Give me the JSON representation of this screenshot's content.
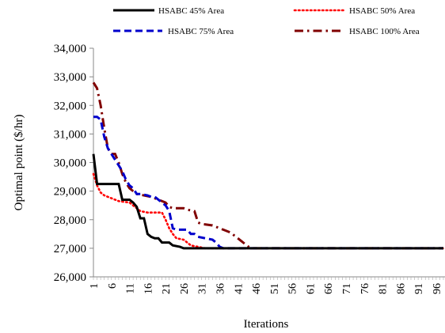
{
  "chart_data": {
    "type": "line",
    "title": "",
    "xlabel": "Iterations",
    "ylabel": "Optimal point ($/hr)",
    "xlim": [
      1,
      98
    ],
    "ylim": [
      26000,
      34000
    ],
    "y_ticks": [
      26000,
      27000,
      28000,
      29000,
      30000,
      31000,
      32000,
      33000,
      34000
    ],
    "y_tick_labels": [
      "26,000",
      "27,000",
      "28,000",
      "29,000",
      "30,000",
      "31,000",
      "32,000",
      "33,000",
      "34,000"
    ],
    "x_ticks": [
      1,
      6,
      11,
      16,
      21,
      26,
      31,
      36,
      41,
      46,
      51,
      56,
      61,
      66,
      71,
      76,
      81,
      86,
      91,
      96
    ],
    "x_tick_labels": [
      "1",
      "6",
      "11",
      "16",
      "21",
      "26",
      "31",
      "36",
      "41",
      "46",
      "51",
      "56",
      "61",
      "66",
      "71",
      "76",
      "81",
      "86",
      "91",
      "96"
    ],
    "grid": false,
    "legend_position": "top",
    "series": [
      {
        "name": "HSABC 45% Area",
        "color": "#000000",
        "style": "solid",
        "points": [
          [
            1,
            30300
          ],
          [
            2,
            29250
          ],
          [
            8,
            29250
          ],
          [
            9,
            28700
          ],
          [
            11,
            28700
          ],
          [
            12,
            28600
          ],
          [
            13,
            28450
          ],
          [
            14,
            28050
          ],
          [
            15,
            28050
          ],
          [
            16,
            27500
          ],
          [
            17,
            27400
          ],
          [
            18,
            27350
          ],
          [
            19,
            27350
          ],
          [
            20,
            27200
          ],
          [
            22,
            27200
          ],
          [
            23,
            27100
          ],
          [
            25,
            27050
          ],
          [
            26,
            27000
          ],
          [
            98,
            27000
          ]
        ]
      },
      {
        "name": "HSABC 50% Area",
        "color": "#ff0000",
        "style": "dotted",
        "points": [
          [
            1,
            29600
          ],
          [
            2,
            29200
          ],
          [
            3,
            28950
          ],
          [
            4,
            28850
          ],
          [
            6,
            28750
          ],
          [
            8,
            28650
          ],
          [
            11,
            28600
          ],
          [
            12,
            28500
          ],
          [
            14,
            28300
          ],
          [
            16,
            28250
          ],
          [
            20,
            28250
          ],
          [
            21,
            28000
          ],
          [
            22,
            27700
          ],
          [
            23,
            27500
          ],
          [
            24,
            27350
          ],
          [
            26,
            27300
          ],
          [
            27,
            27200
          ],
          [
            28,
            27100
          ],
          [
            30,
            27050
          ],
          [
            32,
            27000
          ],
          [
            98,
            27000
          ]
        ]
      },
      {
        "name": "HSABC 75% Area",
        "color": "#0000cc",
        "style": "dashed",
        "points": [
          [
            1,
            31600
          ],
          [
            2,
            31600
          ],
          [
            3,
            31500
          ],
          [
            4,
            30900
          ],
          [
            5,
            30500
          ],
          [
            6,
            30300
          ],
          [
            7,
            30100
          ],
          [
            8,
            29900
          ],
          [
            9,
            29700
          ],
          [
            10,
            29400
          ],
          [
            11,
            29200
          ],
          [
            12,
            29100
          ],
          [
            13,
            28900
          ],
          [
            14,
            28900
          ],
          [
            16,
            28850
          ],
          [
            17,
            28800
          ],
          [
            18,
            28800
          ],
          [
            19,
            28700
          ],
          [
            20,
            28600
          ],
          [
            21,
            28500
          ],
          [
            22,
            28300
          ],
          [
            23,
            27700
          ],
          [
            24,
            27650
          ],
          [
            27,
            27650
          ],
          [
            28,
            27500
          ],
          [
            29,
            27500
          ],
          [
            30,
            27400
          ],
          [
            32,
            27350
          ],
          [
            34,
            27300
          ],
          [
            35,
            27200
          ],
          [
            36,
            27050
          ],
          [
            37,
            27000
          ],
          [
            98,
            27000
          ]
        ]
      },
      {
        "name": "HSABC 100% Area",
        "color": "#800000",
        "style": "dashdot",
        "points": [
          [
            1,
            32800
          ],
          [
            2,
            32600
          ],
          [
            3,
            32000
          ],
          [
            4,
            31200
          ],
          [
            5,
            30500
          ],
          [
            6,
            30300
          ],
          [
            7,
            30300
          ],
          [
            8,
            30000
          ],
          [
            9,
            29600
          ],
          [
            10,
            29300
          ],
          [
            11,
            29100
          ],
          [
            12,
            29000
          ],
          [
            13,
            28900
          ],
          [
            15,
            28850
          ],
          [
            17,
            28800
          ],
          [
            18,
            28750
          ],
          [
            19,
            28700
          ],
          [
            20,
            28650
          ],
          [
            21,
            28600
          ],
          [
            22,
            28450
          ],
          [
            23,
            28400
          ],
          [
            26,
            28400
          ],
          [
            27,
            28350
          ],
          [
            29,
            28300
          ],
          [
            30,
            27900
          ],
          [
            31,
            27850
          ],
          [
            34,
            27800
          ],
          [
            37,
            27650
          ],
          [
            39,
            27550
          ],
          [
            40,
            27450
          ],
          [
            41,
            27350
          ],
          [
            42,
            27250
          ],
          [
            43,
            27150
          ],
          [
            44,
            27050
          ],
          [
            45,
            27000
          ],
          [
            98,
            27000
          ]
        ]
      }
    ]
  }
}
